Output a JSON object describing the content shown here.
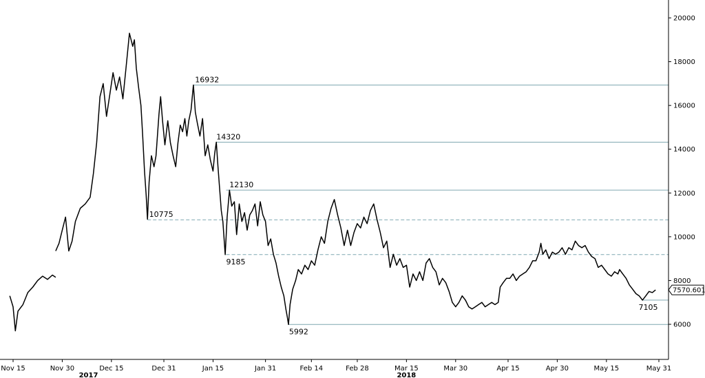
{
  "chart_data": {
    "type": "line",
    "title": "",
    "xlabel": "",
    "ylabel": "",
    "ylim": [
      5000,
      21000
    ],
    "y_ticks": [
      6000,
      8000,
      10000,
      12000,
      14000,
      16000,
      18000,
      20000
    ],
    "y_axis_position": "right",
    "x_ticks": [
      {
        "label": "Nov 15",
        "day": 0
      },
      {
        "label": "Nov 30",
        "day": 15
      },
      {
        "label": "Dec 15",
        "day": 30
      },
      {
        "label": "Dec 31",
        "day": 46
      },
      {
        "label": "Jan 15",
        "day": 61
      },
      {
        "label": "Jan 31",
        "day": 77
      },
      {
        "label": "Feb 14",
        "day": 91
      },
      {
        "label": "Feb 28",
        "day": 105
      },
      {
        "label": "Mar 15",
        "day": 120
      },
      {
        "label": "Mar 30",
        "day": 135
      },
      {
        "label": "Apr 15",
        "day": 151
      },
      {
        "label": "Apr 30",
        "day": 166
      },
      {
        "label": "May 15",
        "day": 181
      },
      {
        "label": "May 31",
        "day": 197
      }
    ],
    "year_labels": [
      {
        "label": "2017",
        "day": 23
      },
      {
        "label": "2018",
        "day": 120
      }
    ],
    "last_price": 7570.6016,
    "last_price_label": "7570.6016",
    "levels": [
      {
        "value": 16932,
        "label": "16932",
        "start_day": 55,
        "style": "solid"
      },
      {
        "value": 14320,
        "label": "14320",
        "start_day": 62,
        "style": "solid"
      },
      {
        "value": 12130,
        "label": "12130",
        "start_day": 65,
        "style": "solid"
      },
      {
        "value": 10775,
        "label": "10775",
        "start_day": 41,
        "style": "dashed"
      },
      {
        "value": 9185,
        "label": "9185",
        "start_day": 65,
        "style": "dashed"
      },
      {
        "value": 7105,
        "label": "7105",
        "start_day": 192,
        "style": "solid"
      },
      {
        "value": 5992,
        "label": "5992",
        "start_day": 84,
        "style": "solid"
      }
    ],
    "series": [
      {
        "points": [
          [
            -1,
            7300
          ],
          [
            0,
            6800
          ],
          [
            0.7,
            5700
          ],
          [
            1.5,
            6600
          ],
          [
            3,
            6900
          ],
          [
            4.5,
            7450
          ],
          [
            6,
            7700
          ],
          [
            7.5,
            8000
          ],
          [
            9,
            8200
          ],
          [
            10.5,
            8050
          ],
          [
            12,
            8250
          ],
          [
            13,
            8150
          ],
          [
            13,
            9350
          ],
          [
            14,
            9700
          ],
          [
            15,
            10300
          ],
          [
            16,
            10900
          ],
          [
            17,
            9350
          ],
          [
            18,
            9800
          ],
          [
            19,
            10700
          ],
          [
            20.5,
            11300
          ],
          [
            22,
            11500
          ],
          [
            23.5,
            11800
          ],
          [
            24.5,
            12900
          ],
          [
            25.5,
            14300
          ],
          [
            26.5,
            16400
          ],
          [
            27.5,
            17000
          ],
          [
            28.5,
            15500
          ],
          [
            29.5,
            16500
          ],
          [
            30.5,
            17500
          ],
          [
            31.5,
            16700
          ],
          [
            32.5,
            17300
          ],
          [
            33.5,
            16300
          ],
          [
            34.5,
            17800
          ],
          [
            35.5,
            19300
          ],
          [
            36.5,
            18700
          ],
          [
            37,
            19000
          ],
          [
            37.6,
            17700
          ],
          [
            38.3,
            16800
          ],
          [
            39,
            16000
          ],
          [
            39.5,
            14700
          ],
          [
            40.1,
            13000
          ],
          [
            40.6,
            11900
          ],
          [
            41,
            10800
          ],
          [
            41.5,
            12500
          ],
          [
            42.2,
            13700
          ],
          [
            43,
            13200
          ],
          [
            43.6,
            13700
          ],
          [
            44.5,
            15600
          ],
          [
            45,
            16400
          ],
          [
            45.6,
            15300
          ],
          [
            46.3,
            14200
          ],
          [
            47.2,
            15300
          ],
          [
            48,
            14300
          ],
          [
            48.8,
            13700
          ],
          [
            49.6,
            13200
          ],
          [
            50.3,
            14300
          ],
          [
            51,
            15100
          ],
          [
            51.7,
            14800
          ],
          [
            52.4,
            15400
          ],
          [
            53,
            14600
          ],
          [
            53.6,
            15300
          ],
          [
            54.3,
            15800
          ],
          [
            55,
            16932
          ],
          [
            55.6,
            15700
          ],
          [
            56.2,
            15200
          ],
          [
            57,
            14600
          ],
          [
            57.8,
            15400
          ],
          [
            58.6,
            13700
          ],
          [
            59.4,
            14200
          ],
          [
            60.2,
            13500
          ],
          [
            61,
            13000
          ],
          [
            61.5,
            13800
          ],
          [
            62,
            14320
          ],
          [
            62.5,
            13200
          ],
          [
            63,
            12200
          ],
          [
            63.5,
            11200
          ],
          [
            64,
            10700
          ],
          [
            64.7,
            9185
          ],
          [
            65.3,
            10900
          ],
          [
            66,
            12130
          ],
          [
            66.7,
            11400
          ],
          [
            67.5,
            11600
          ],
          [
            68.2,
            10100
          ],
          [
            69,
            11500
          ],
          [
            69.8,
            10700
          ],
          [
            70.6,
            11100
          ],
          [
            71.4,
            10300
          ],
          [
            72.2,
            11000
          ],
          [
            73,
            11200
          ],
          [
            73.8,
            11500
          ],
          [
            74.6,
            10500
          ],
          [
            75.4,
            11600
          ],
          [
            76.2,
            11000
          ],
          [
            77,
            10700
          ],
          [
            77.8,
            9600
          ],
          [
            78.6,
            9900
          ],
          [
            79.4,
            9200
          ],
          [
            80.2,
            8800
          ],
          [
            81,
            8200
          ],
          [
            81.8,
            7700
          ],
          [
            82.6,
            7300
          ],
          [
            83.2,
            6700
          ],
          [
            83.7,
            6300
          ],
          [
            84,
            5992
          ],
          [
            84.5,
            6900
          ],
          [
            85.3,
            7600
          ],
          [
            86.2,
            8000
          ],
          [
            87,
            8500
          ],
          [
            88,
            8300
          ],
          [
            89,
            8700
          ],
          [
            90,
            8500
          ],
          [
            91,
            8900
          ],
          [
            92,
            8700
          ],
          [
            93,
            9400
          ],
          [
            94,
            10000
          ],
          [
            95,
            9700
          ],
          [
            96,
            10700
          ],
          [
            97,
            11300
          ],
          [
            98,
            11700
          ],
          [
            99,
            11000
          ],
          [
            100,
            10400
          ],
          [
            101,
            9600
          ],
          [
            102,
            10300
          ],
          [
            103,
            9600
          ],
          [
            104,
            10200
          ],
          [
            105,
            10600
          ],
          [
            106,
            10400
          ],
          [
            107,
            10900
          ],
          [
            108,
            10600
          ],
          [
            109,
            11200
          ],
          [
            110,
            11500
          ],
          [
            111,
            10800
          ],
          [
            112,
            10200
          ],
          [
            113,
            9500
          ],
          [
            114,
            9800
          ],
          [
            115,
            8600
          ],
          [
            116,
            9200
          ],
          [
            117,
            8700
          ],
          [
            118,
            9000
          ],
          [
            119,
            8600
          ],
          [
            120,
            8700
          ],
          [
            121,
            7700
          ],
          [
            122,
            8300
          ],
          [
            123,
            8000
          ],
          [
            124,
            8400
          ],
          [
            125,
            8000
          ],
          [
            126,
            8800
          ],
          [
            127,
            9000
          ],
          [
            128,
            8600
          ],
          [
            129,
            8400
          ],
          [
            130,
            7800
          ],
          [
            131,
            8100
          ],
          [
            132,
            7900
          ],
          [
            133,
            7500
          ],
          [
            134,
            7000
          ],
          [
            135,
            6800
          ],
          [
            136,
            7000
          ],
          [
            137,
            7300
          ],
          [
            138,
            7100
          ],
          [
            139,
            6800
          ],
          [
            140,
            6700
          ],
          [
            141,
            6800
          ],
          [
            142,
            6900
          ],
          [
            143,
            7000
          ],
          [
            144,
            6800
          ],
          [
            145,
            6900
          ],
          [
            146,
            7000
          ],
          [
            147,
            6900
          ],
          [
            148,
            7000
          ],
          [
            148.6,
            7700
          ],
          [
            149.5,
            7900
          ],
          [
            150.5,
            8100
          ],
          [
            151.5,
            8100
          ],
          [
            152.5,
            8300
          ],
          [
            153.5,
            8000
          ],
          [
            154.5,
            8200
          ],
          [
            155.5,
            8300
          ],
          [
            156.5,
            8400
          ],
          [
            157.5,
            8600
          ],
          [
            158.5,
            8900
          ],
          [
            159.5,
            8900
          ],
          [
            160.5,
            9300
          ],
          [
            161,
            9700
          ],
          [
            161.6,
            9200
          ],
          [
            162.5,
            9400
          ],
          [
            163.5,
            9000
          ],
          [
            164.5,
            9300
          ],
          [
            165.5,
            9200
          ],
          [
            166.5,
            9300
          ],
          [
            167.5,
            9500
          ],
          [
            168.5,
            9200
          ],
          [
            169.5,
            9500
          ],
          [
            170.5,
            9400
          ],
          [
            171.5,
            9800
          ],
          [
            172.5,
            9600
          ],
          [
            173.5,
            9500
          ],
          [
            174.5,
            9600
          ],
          [
            175.5,
            9300
          ],
          [
            176.5,
            9100
          ],
          [
            177.5,
            9000
          ],
          [
            178.5,
            8600
          ],
          [
            179.5,
            8700
          ],
          [
            180.5,
            8500
          ],
          [
            181.5,
            8300
          ],
          [
            182.5,
            8200
          ],
          [
            183.5,
            8400
          ],
          [
            184.5,
            8300
          ],
          [
            185,
            8500
          ],
          [
            186,
            8300
          ],
          [
            187,
            8100
          ],
          [
            188,
            7800
          ],
          [
            189,
            7600
          ],
          [
            190,
            7400
          ],
          [
            191,
            7300
          ],
          [
            192,
            7105
          ],
          [
            193,
            7300
          ],
          [
            194,
            7500
          ],
          [
            195,
            7450
          ],
          [
            196,
            7570
          ]
        ]
      }
    ]
  }
}
